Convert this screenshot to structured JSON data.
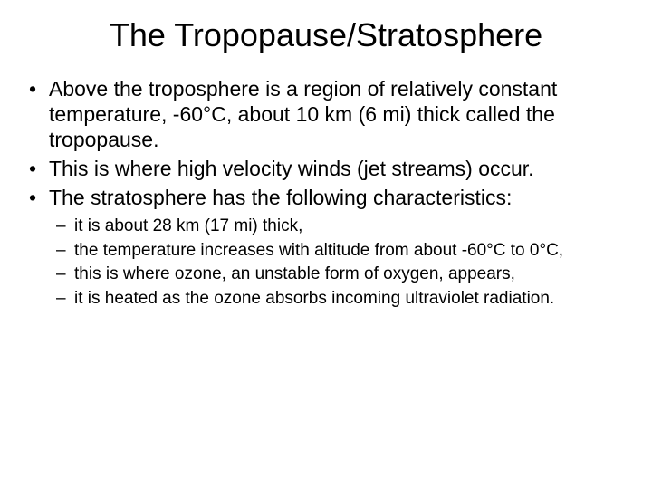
{
  "slide": {
    "title": "The Tropopause/Stratosphere",
    "bullets": [
      "Above the troposphere is a region of relatively constant temperature, -60°C, about 10 km (6 mi) thick called the tropopause.",
      "This is where high velocity winds (jet streams) occur.",
      "The stratosphere has the following characteristics:"
    ],
    "subBullets": [
      "it is about 28 km (17 mi) thick,",
      "the temperature increases with altitude from about -60°C to 0°C,",
      "this is where ozone, an unstable form of oxygen, appears,",
      "it is heated as the ozone absorbs incoming ultraviolet radiation."
    ],
    "style": {
      "background_color": "#ffffff",
      "text_color": "#000000",
      "title_fontsize": 36,
      "bullet_fontsize": 23,
      "sub_bullet_fontsize": 19,
      "font_family": "Arial"
    }
  }
}
